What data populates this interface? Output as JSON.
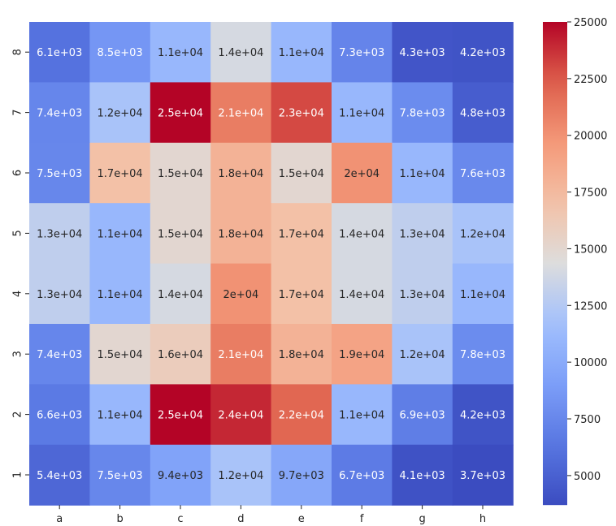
{
  "chart_data": {
    "type": "heatmap",
    "title": "",
    "xlabel": "",
    "ylabel": "",
    "x_categories": [
      "a",
      "b",
      "c",
      "d",
      "e",
      "f",
      "g",
      "h"
    ],
    "y_categories": [
      "8",
      "7",
      "6",
      "5",
      "4",
      "3",
      "2",
      "1"
    ],
    "values": [
      [
        6100,
        8500,
        11000,
        14000,
        11000,
        7300,
        4300,
        4200
      ],
      [
        7400,
        12000,
        25000,
        21000,
        23000,
        11000,
        7800,
        4800
      ],
      [
        7500,
        17000,
        15000,
        18000,
        15000,
        20000,
        11000,
        7600
      ],
      [
        13000,
        11000,
        15000,
        18000,
        17000,
        14000,
        13000,
        12000
      ],
      [
        13000,
        11000,
        14000,
        20000,
        17000,
        14000,
        13000,
        11000
      ],
      [
        7400,
        15000,
        16000,
        21000,
        18000,
        19000,
        12000,
        7800
      ],
      [
        6600,
        11000,
        25000,
        24000,
        22000,
        11000,
        6900,
        4200
      ],
      [
        5400,
        7500,
        9400,
        12000,
        9700,
        6700,
        4100,
        3700
      ]
    ],
    "annotations": [
      [
        "6.1e+03",
        "8.5e+03",
        "1.1e+04",
        "1.4e+04",
        "1.1e+04",
        "7.3e+03",
        "4.3e+03",
        "4.2e+03"
      ],
      [
        "7.4e+03",
        "1.2e+04",
        "2.5e+04",
        "2.1e+04",
        "2.3e+04",
        "1.1e+04",
        "7.8e+03",
        "4.8e+03"
      ],
      [
        "7.5e+03",
        "1.7e+04",
        "1.5e+04",
        "1.8e+04",
        "1.5e+04",
        "2e+04",
        "1.1e+04",
        "7.6e+03"
      ],
      [
        "1.3e+04",
        "1.1e+04",
        "1.5e+04",
        "1.8e+04",
        "1.7e+04",
        "1.4e+04",
        "1.3e+04",
        "1.2e+04"
      ],
      [
        "1.3e+04",
        "1.1e+04",
        "1.4e+04",
        "2e+04",
        "1.7e+04",
        "1.4e+04",
        "1.3e+04",
        "1.1e+04"
      ],
      [
        "7.4e+03",
        "1.5e+04",
        "1.6e+04",
        "2.1e+04",
        "1.8e+04",
        "1.9e+04",
        "1.2e+04",
        "7.8e+03"
      ],
      [
        "6.6e+03",
        "1.1e+04",
        "2.5e+04",
        "2.4e+04",
        "2.2e+04",
        "1.1e+04",
        "6.9e+03",
        "4.2e+03"
      ],
      [
        "5.4e+03",
        "7.5e+03",
        "9.4e+03",
        "1.2e+04",
        "9.7e+03",
        "6.7e+03",
        "4.1e+03",
        "3.7e+03"
      ]
    ],
    "colormap": "coolwarm",
    "color_range": [
      3700,
      25000
    ],
    "colorbar_ticks": [
      "5000",
      "7500",
      "10000",
      "12500",
      "15000",
      "17500",
      "20000",
      "22500",
      "25000"
    ],
    "colorbar_tick_values": [
      5000,
      7500,
      10000,
      12500,
      15000,
      17500,
      20000,
      22500,
      25000
    ],
    "legend_position": "right",
    "grid": false
  }
}
